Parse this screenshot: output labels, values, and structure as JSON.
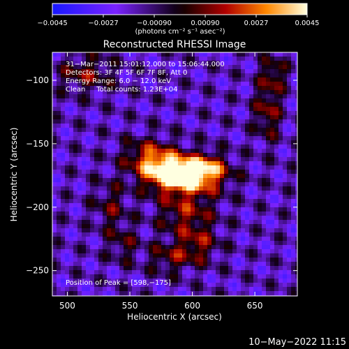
{
  "chart_data": {
    "type": "heatmap",
    "title": "Reconstructed RHESSI Image",
    "xlabel": "Heliocentric X (arcsec)",
    "ylabel": "Heliocentric Y (arcsec)",
    "xlim": [
      488,
      684
    ],
    "ylim": [
      -270,
      -78
    ],
    "xticks": [
      500,
      550,
      600,
      650
    ],
    "yticks": [
      -100,
      -150,
      -200,
      -250
    ],
    "xtick_labels": [
      "500",
      "550",
      "600",
      "650"
    ],
    "ytick_labels": [
      "−100",
      "−150",
      "−200",
      "−250"
    ],
    "colorbar": {
      "range": [
        -0.0045,
        0.0045
      ],
      "ticks": [
        -0.0045,
        -0.0027,
        -0.0009,
        0.0009,
        0.0027,
        0.0045
      ],
      "tick_labels": [
        "−0.0045",
        "−0.0027",
        "−0.00090",
        "0.00090",
        "0.0027",
        "0.0045"
      ],
      "unit_text": "(photons cm⁻² s⁻¹ asec⁻²)"
    },
    "annotations": [
      "31−Mar−2011 15:01:12.000 to 15:06:44.000",
      "Detectors: 3F 4F 5F 6F 7F 8F, Att 0",
      "Energy Range: 6.0 − 12.0 keV",
      "Clean     Total counts: 1.23E+04"
    ],
    "peak_label": "Position of Peak = [598,−175]",
    "peak": [
      598,
      -175
    ],
    "timestamp": "10−May−2022 11:15"
  }
}
